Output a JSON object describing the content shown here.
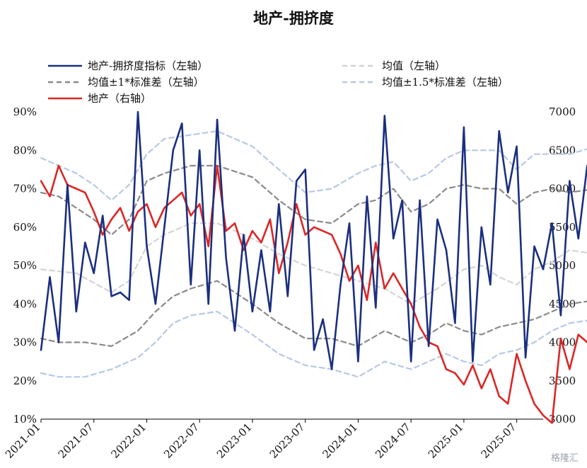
{
  "chart_data": {
    "type": "line",
    "title": "地产-拥挤度",
    "x_start": "2021-01",
    "x_end": "2025-10",
    "x_ticks": [
      "2021-01",
      "2021-07",
      "2022-01",
      "2022-07",
      "2023-01",
      "2023-07",
      "2024-01",
      "2024-07",
      "2025-01",
      "2025-07"
    ],
    "y_left": {
      "min": 10,
      "max": 90,
      "ticks": [
        "10%",
        "20%",
        "30%",
        "40%",
        "50%",
        "60%",
        "70%",
        "80%",
        "90%"
      ]
    },
    "y_right": {
      "min": 3000,
      "max": 7000,
      "ticks": [
        "3000",
        "3500",
        "4000",
        "4500",
        "5000",
        "5500",
        "6000",
        "6500",
        "7000"
      ]
    },
    "legend_position": "top",
    "series": [
      {
        "name": "地产-拥挤度指标（左轴）",
        "axis": "left",
        "color": "#1b2f80",
        "dash": "",
        "points": [
          [
            "2021-01",
            28
          ],
          [
            "2021-02",
            47
          ],
          [
            "2021-03",
            30
          ],
          [
            "2021-04",
            71
          ],
          [
            "2021-05",
            38
          ],
          [
            "2021-06",
            56
          ],
          [
            "2021-07",
            48
          ],
          [
            "2021-08",
            63
          ],
          [
            "2021-09",
            42
          ],
          [
            "2021-10",
            43
          ],
          [
            "2021-11",
            41
          ],
          [
            "2021-12",
            90
          ],
          [
            "2022-01",
            55
          ],
          [
            "2022-02",
            40
          ],
          [
            "2022-03",
            60
          ],
          [
            "2022-04",
            80
          ],
          [
            "2022-05",
            87
          ],
          [
            "2022-06",
            45
          ],
          [
            "2022-07",
            80
          ],
          [
            "2022-08",
            40
          ],
          [
            "2022-09",
            88
          ],
          [
            "2022-10",
            52
          ],
          [
            "2022-11",
            33
          ],
          [
            "2022-12",
            58
          ],
          [
            "2023-01",
            38
          ],
          [
            "2023-02",
            54
          ],
          [
            "2023-03",
            38
          ],
          [
            "2023-04",
            66
          ],
          [
            "2023-05",
            42
          ],
          [
            "2023-06",
            72
          ],
          [
            "2023-07",
            75
          ],
          [
            "2023-08",
            28
          ],
          [
            "2023-09",
            36
          ],
          [
            "2023-10",
            23
          ],
          [
            "2023-11",
            45
          ],
          [
            "2023-12",
            61
          ],
          [
            "2024-01",
            25
          ],
          [
            "2024-02",
            68
          ],
          [
            "2024-03",
            39
          ],
          [
            "2024-04",
            89
          ],
          [
            "2024-05",
            57
          ],
          [
            "2024-06",
            67
          ],
          [
            "2024-07",
            25
          ],
          [
            "2024-08",
            67
          ],
          [
            "2024-09",
            29
          ],
          [
            "2024-10",
            62
          ],
          [
            "2024-11",
            54
          ],
          [
            "2024-12",
            35
          ],
          [
            "2025-01",
            86
          ],
          [
            "2025-02",
            25
          ],
          [
            "2025-03",
            60
          ],
          [
            "2025-04",
            45
          ],
          [
            "2025-05",
            85
          ],
          [
            "2025-06",
            69
          ],
          [
            "2025-07",
            81
          ],
          [
            "2025-08",
            26
          ],
          [
            "2025-09",
            55
          ],
          [
            "2025-10",
            49
          ],
          [
            "2025-11",
            61
          ],
          [
            "2025-12",
            37
          ],
          [
            "2026-01",
            72
          ],
          [
            "2026-02",
            57
          ],
          [
            "2026-03",
            76
          ],
          [
            "2026-04",
            65
          ]
        ]
      },
      {
        "name": "均值（左轴）",
        "axis": "left",
        "color": "#d4d4d4",
        "dash": "7,5",
        "points": [
          [
            "2021-01",
            49
          ],
          [
            "2021-05",
            48
          ],
          [
            "2021-09",
            43
          ],
          [
            "2021-11",
            46
          ],
          [
            "2022-01",
            55
          ],
          [
            "2022-03",
            58
          ],
          [
            "2022-06",
            61
          ],
          [
            "2022-09",
            61
          ],
          [
            "2023-01",
            57
          ],
          [
            "2023-04",
            53
          ],
          [
            "2023-07",
            50
          ],
          [
            "2023-10",
            48
          ],
          [
            "2024-01",
            46
          ],
          [
            "2024-04",
            44
          ],
          [
            "2024-07",
            40
          ],
          [
            "2024-10",
            44
          ],
          [
            "2025-01",
            49
          ],
          [
            "2025-03",
            50
          ],
          [
            "2025-05",
            47
          ],
          [
            "2025-07",
            45
          ],
          [
            "2025-09",
            49
          ],
          [
            "2025-11",
            51
          ],
          [
            "2026-01",
            54
          ],
          [
            "2026-04",
            53
          ]
        ]
      },
      {
        "name": "均值±1*标准差（左轴）",
        "axis": "left",
        "color": "#8a8a8a",
        "dash": "7,5",
        "points": [
          [
            "2021-01",
            69
          ],
          [
            "2021-03",
            68
          ],
          [
            "2021-05",
            65
          ],
          [
            "2021-07",
            62
          ],
          [
            "2021-09",
            58
          ],
          [
            "2021-11",
            62
          ],
          [
            "2022-01",
            72
          ],
          [
            "2022-03",
            74
          ],
          [
            "2022-06",
            76
          ],
          [
            "2022-09",
            76
          ],
          [
            "2023-01",
            73
          ],
          [
            "2023-04",
            67
          ],
          [
            "2023-07",
            62
          ],
          [
            "2023-10",
            61
          ],
          [
            "2024-01",
            66
          ],
          [
            "2024-03",
            67
          ],
          [
            "2024-05",
            70
          ],
          [
            "2024-07",
            64
          ],
          [
            "2024-09",
            66
          ],
          [
            "2024-11",
            70
          ],
          [
            "2025-01",
            71
          ],
          [
            "2025-03",
            70
          ],
          [
            "2025-05",
            70
          ],
          [
            "2025-07",
            66
          ],
          [
            "2025-09",
            69
          ],
          [
            "2025-11",
            70
          ],
          [
            "2026-01",
            69
          ],
          [
            "2026-04",
            70
          ]
        ]
      },
      {
        "name": "",
        "axis": "left",
        "color": "#8a8a8a",
        "dash": "7,5",
        "points": [
          [
            "2021-01",
            31
          ],
          [
            "2021-03",
            30
          ],
          [
            "2021-06",
            30
          ],
          [
            "2021-09",
            29
          ],
          [
            "2021-12",
            33
          ],
          [
            "2022-02",
            38
          ],
          [
            "2022-04",
            42
          ],
          [
            "2022-06",
            44
          ],
          [
            "2022-09",
            46
          ],
          [
            "2023-01",
            40
          ],
          [
            "2023-04",
            35
          ],
          [
            "2023-07",
            31
          ],
          [
            "2023-10",
            31
          ],
          [
            "2024-01",
            29
          ],
          [
            "2024-04",
            33
          ],
          [
            "2024-07",
            30
          ],
          [
            "2024-09",
            32
          ],
          [
            "2024-11",
            35
          ],
          [
            "2025-01",
            33
          ],
          [
            "2025-03",
            32
          ],
          [
            "2025-05",
            34
          ],
          [
            "2025-07",
            35
          ],
          [
            "2025-09",
            36
          ],
          [
            "2025-11",
            38
          ],
          [
            "2026-01",
            40
          ],
          [
            "2026-04",
            41
          ]
        ]
      },
      {
        "name": "均值±1.5*标准差（左轴）",
        "axis": "left",
        "color": "#b7c8e4",
        "dash": "7,5",
        "points": [
          [
            "2021-01",
            78
          ],
          [
            "2021-03",
            76
          ],
          [
            "2021-05",
            74
          ],
          [
            "2021-07",
            71
          ],
          [
            "2021-09",
            67
          ],
          [
            "2021-11",
            71
          ],
          [
            "2022-01",
            79
          ],
          [
            "2022-03",
            83
          ],
          [
            "2022-06",
            84
          ],
          [
            "2022-09",
            85
          ],
          [
            "2023-01",
            81
          ],
          [
            "2023-04",
            75
          ],
          [
            "2023-07",
            69
          ],
          [
            "2023-10",
            70
          ],
          [
            "2024-01",
            74
          ],
          [
            "2024-03",
            76
          ],
          [
            "2024-05",
            77
          ],
          [
            "2024-07",
            72
          ],
          [
            "2024-09",
            74
          ],
          [
            "2024-11",
            78
          ],
          [
            "2025-01",
            80
          ],
          [
            "2025-03",
            80
          ],
          [
            "2025-05",
            80
          ],
          [
            "2025-07",
            75
          ],
          [
            "2025-09",
            79
          ],
          [
            "2025-11",
            79
          ],
          [
            "2026-01",
            79
          ],
          [
            "2026-04",
            81
          ]
        ]
      },
      {
        "name": "",
        "axis": "left",
        "color": "#b7c8e4",
        "dash": "7,5",
        "points": [
          [
            "2021-01",
            22
          ],
          [
            "2021-03",
            21
          ],
          [
            "2021-06",
            21
          ],
          [
            "2021-09",
            23
          ],
          [
            "2021-12",
            26
          ],
          [
            "2022-02",
            30
          ],
          [
            "2022-04",
            35
          ],
          [
            "2022-06",
            37
          ],
          [
            "2022-09",
            38
          ],
          [
            "2023-01",
            32
          ],
          [
            "2023-04",
            27
          ],
          [
            "2023-07",
            24
          ],
          [
            "2023-10",
            23
          ],
          [
            "2024-01",
            21
          ],
          [
            "2024-04",
            25
          ],
          [
            "2024-07",
            23
          ],
          [
            "2024-09",
            25
          ],
          [
            "2024-11",
            27
          ],
          [
            "2025-01",
            25
          ],
          [
            "2025-03",
            24
          ],
          [
            "2025-05",
            27
          ],
          [
            "2025-07",
            28
          ],
          [
            "2025-09",
            30
          ],
          [
            "2025-11",
            33
          ],
          [
            "2026-01",
            35
          ],
          [
            "2026-04",
            36
          ]
        ]
      },
      {
        "name": "地产（右轴）",
        "axis": "right",
        "color": "#dc2626",
        "dash": "",
        "points": [
          [
            "2021-01",
            6100
          ],
          [
            "2021-02",
            5900
          ],
          [
            "2021-03",
            6300
          ],
          [
            "2021-04",
            6050
          ],
          [
            "2021-05",
            6000
          ],
          [
            "2021-06",
            5950
          ],
          [
            "2021-07",
            5700
          ],
          [
            "2021-08",
            5400
          ],
          [
            "2021-09",
            5600
          ],
          [
            "2021-10",
            5750
          ],
          [
            "2021-11",
            5450
          ],
          [
            "2021-12",
            5700
          ],
          [
            "2022-01",
            5800
          ],
          [
            "2022-02",
            5500
          ],
          [
            "2022-03",
            5750
          ],
          [
            "2022-04",
            5850
          ],
          [
            "2022-05",
            5950
          ],
          [
            "2022-06",
            5650
          ],
          [
            "2022-07",
            5800
          ],
          [
            "2022-08",
            5250
          ],
          [
            "2022-09",
            6300
          ],
          [
            "2022-10",
            5450
          ],
          [
            "2022-11",
            5550
          ],
          [
            "2022-12",
            5200
          ],
          [
            "2023-01",
            5450
          ],
          [
            "2023-02",
            5300
          ],
          [
            "2023-03",
            5600
          ],
          [
            "2023-04",
            4900
          ],
          [
            "2023-05",
            5300
          ],
          [
            "2023-06",
            5800
          ],
          [
            "2023-07",
            5400
          ],
          [
            "2023-08",
            5500
          ],
          [
            "2023-09",
            5450
          ],
          [
            "2023-10",
            5400
          ],
          [
            "2023-11",
            5150
          ],
          [
            "2023-12",
            4800
          ],
          [
            "2024-01",
            5000
          ],
          [
            "2024-02",
            4550
          ],
          [
            "2024-03",
            5300
          ],
          [
            "2024-04",
            4700
          ],
          [
            "2024-05",
            4900
          ],
          [
            "2024-06",
            4700
          ],
          [
            "2024-07",
            4500
          ],
          [
            "2024-08",
            4200
          ],
          [
            "2024-09",
            4000
          ],
          [
            "2024-10",
            3950
          ],
          [
            "2024-11",
            3650
          ],
          [
            "2024-12",
            3600
          ],
          [
            "2025-01",
            3450
          ],
          [
            "2025-02",
            3700
          ],
          [
            "2025-03",
            3400
          ],
          [
            "2025-04",
            3650
          ],
          [
            "2025-05",
            3300
          ],
          [
            "2025-06",
            3200
          ],
          [
            "2025-07",
            3850
          ],
          [
            "2025-08",
            3500
          ],
          [
            "2025-09",
            3200
          ],
          [
            "2025-10",
            3050
          ],
          [
            "2025-11",
            2950
          ],
          [
            "2025-12",
            4050
          ],
          [
            "2026-01",
            3650
          ],
          [
            "2026-02",
            4100
          ],
          [
            "2026-03",
            4000
          ],
          [
            "2026-04",
            4050
          ]
        ]
      }
    ]
  },
  "watermark": "格隆汇"
}
